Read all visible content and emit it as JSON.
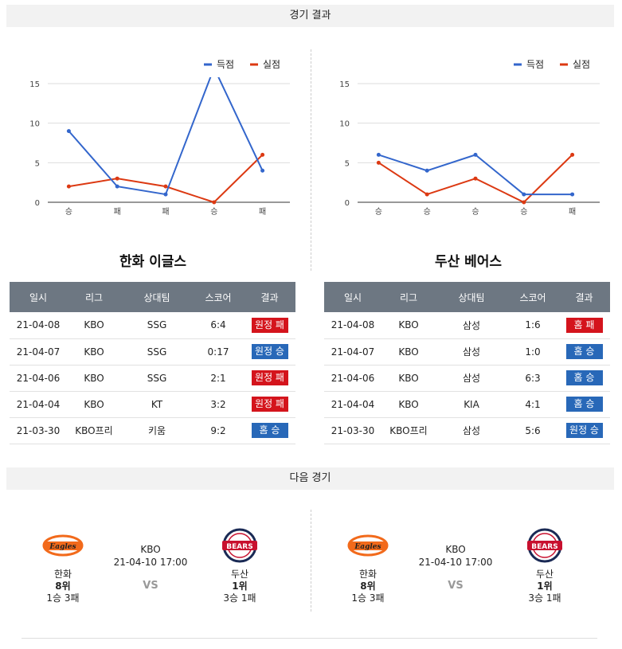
{
  "sections": {
    "results": "경기 결과",
    "next": "다음 경기"
  },
  "legend": {
    "scored": "득점",
    "conceded": "실점"
  },
  "colors": {
    "scored": "#3366cc",
    "conceded": "#dc3912",
    "win": "#2868b8",
    "loss": "#d4141c",
    "header": "#6d7782"
  },
  "chart_data": [
    {
      "type": "line",
      "categories": [
        "승",
        "패",
        "패",
        "승",
        "패"
      ],
      "series": [
        {
          "name": "득점",
          "values": [
            9,
            2,
            1,
            17,
            4
          ]
        },
        {
          "name": "실점",
          "values": [
            2,
            3,
            2,
            0,
            6
          ]
        }
      ],
      "yticks": [
        0,
        5,
        10,
        15
      ],
      "ylim": [
        0,
        15
      ],
      "grid": true,
      "legend": "top-right"
    },
    {
      "type": "line",
      "categories": [
        "승",
        "승",
        "승",
        "승",
        "패"
      ],
      "series": [
        {
          "name": "득점",
          "values": [
            6,
            4,
            6,
            1,
            1
          ]
        },
        {
          "name": "실점",
          "values": [
            5,
            1,
            3,
            0,
            6
          ]
        }
      ],
      "yticks": [
        0,
        5,
        10,
        15
      ],
      "ylim": [
        0,
        15
      ],
      "grid": true,
      "legend": "top-right"
    }
  ],
  "tables": [
    {
      "team": "한화 이글스",
      "headers": [
        "일시",
        "리그",
        "상대팀",
        "스코어",
        "결과"
      ],
      "rows": [
        {
          "date": "21-04-08",
          "league": "KBO",
          "opponent": "SSG",
          "score": "6:4",
          "result": "원정 패",
          "status": "loss"
        },
        {
          "date": "21-04-07",
          "league": "KBO",
          "opponent": "SSG",
          "score": "0:17",
          "result": "원정 승",
          "status": "win"
        },
        {
          "date": "21-04-06",
          "league": "KBO",
          "opponent": "SSG",
          "score": "2:1",
          "result": "원정 패",
          "status": "loss"
        },
        {
          "date": "21-04-04",
          "league": "KBO",
          "opponent": "KT",
          "score": "3:2",
          "result": "원정 패",
          "status": "loss"
        },
        {
          "date": "21-03-30",
          "league": "KBO프리",
          "opponent": "키움",
          "score": "9:2",
          "result": "홈 승",
          "status": "win"
        }
      ]
    },
    {
      "team": "두산 베어스",
      "headers": [
        "일시",
        "리그",
        "상대팀",
        "스코어",
        "결과"
      ],
      "rows": [
        {
          "date": "21-04-08",
          "league": "KBO",
          "opponent": "삼성",
          "score": "1:6",
          "result": "홈 패",
          "status": "loss"
        },
        {
          "date": "21-04-07",
          "league": "KBO",
          "opponent": "삼성",
          "score": "1:0",
          "result": "홈 승",
          "status": "win"
        },
        {
          "date": "21-04-06",
          "league": "KBO",
          "opponent": "삼성",
          "score": "6:3",
          "result": "홈 승",
          "status": "win"
        },
        {
          "date": "21-04-04",
          "league": "KBO",
          "opponent": "KIA",
          "score": "4:1",
          "result": "홈 승",
          "status": "win"
        },
        {
          "date": "21-03-30",
          "league": "KBO프리",
          "opponent": "삼성",
          "score": "5:6",
          "result": "원정 승",
          "status": "win"
        }
      ]
    }
  ],
  "next_match": {
    "league": "KBO",
    "datetime": "21-04-10 17:00",
    "vs": "VS",
    "home": {
      "name": "한화",
      "rank": "8위",
      "record": "1승 3패",
      "logo_text": "Eagles",
      "logo_icon": "eagles-logo-icon"
    },
    "away": {
      "name": "두산",
      "rank": "1위",
      "record": "3승 1패",
      "logo_text": "BEARS",
      "logo_icon": "bears-logo-icon"
    }
  }
}
